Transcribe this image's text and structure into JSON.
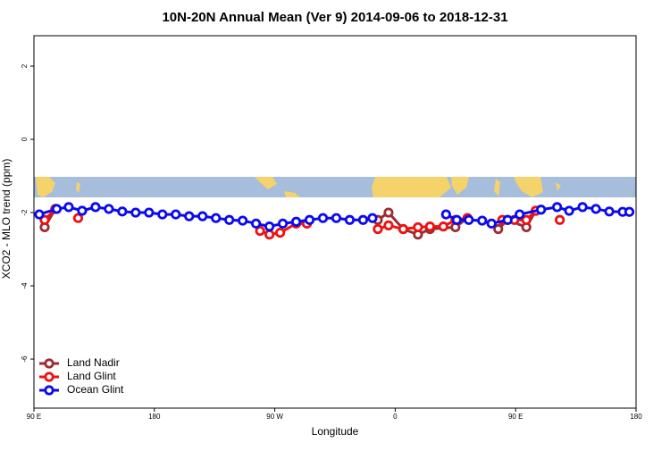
{
  "chart_data": {
    "type": "line",
    "title": "10N-20N Annual Mean (Ver 9)   2014-09-06 to 2018-12-31",
    "x_label": "Longitude",
    "y_label": "XCO2 - MLO trend (ppm)",
    "xlim": [
      90,
      540
    ],
    "ylim": [
      -7.34,
      2.83
    ],
    "xticks": [
      {
        "value": 90,
        "label": "90 E"
      },
      {
        "value": 180,
        "label": "180"
      },
      {
        "value": 270,
        "label": "90 W"
      },
      {
        "value": 360,
        "label": "0"
      },
      {
        "value": 450,
        "label": "90 E"
      },
      {
        "value": 540,
        "label": "180"
      }
    ],
    "yticks": [
      -6,
      -4,
      -2,
      0,
      2
    ],
    "legend": "bottom-left",
    "series": [
      {
        "name": "Land Nadir",
        "color": "#9b2d30",
        "x": [
          98,
          106,
          200,
          286,
          294,
          320,
          347,
          355,
          366,
          377,
          386,
          405,
          414,
          425,
          437,
          444,
          458,
          465
        ],
        "values": [
          -2.4,
          -1.9,
          null,
          -2.25,
          -2.3,
          null,
          -2.2,
          -2.0,
          -2.45,
          -2.6,
          -2.45,
          -2.4,
          -2.15,
          null,
          -2.45,
          -2.2,
          -2.4,
          -1.95
        ]
      },
      {
        "name": "Land Glint",
        "color": "#ee1111",
        "x": [
          98,
          106,
          115,
          123,
          200,
          259,
          266,
          274,
          286,
          294,
          320,
          347,
          355,
          366,
          377,
          386,
          396,
          405,
          414,
          425,
          440,
          449,
          458,
          465,
          475,
          483
        ],
        "values": [
          -2.2,
          -1.9,
          null,
          -2.15,
          null,
          -2.5,
          -2.6,
          -2.55,
          -2.3,
          -2.3,
          null,
          -2.45,
          -2.35,
          -2.45,
          -2.4,
          -2.38,
          -2.38,
          -2.2,
          -2.15,
          null,
          -2.2,
          -2.2,
          -2.2,
          -1.95,
          null,
          -2.2
        ]
      },
      {
        "name": "Ocean Glint",
        "color": "#0a0af0",
        "x": [
          94,
          107,
          116,
          126,
          136,
          146,
          156,
          166,
          176,
          186,
          196,
          206,
          216,
          226,
          236,
          246,
          256,
          266,
          276,
          286,
          296,
          306,
          316,
          326,
          336,
          343,
          370,
          398,
          406,
          415,
          425,
          432,
          444,
          453,
          469,
          481,
          490,
          500,
          510,
          520,
          530,
          535
        ],
        "values": [
          -2.05,
          -1.9,
          -1.85,
          -1.95,
          -1.85,
          -1.9,
          -1.97,
          -2.0,
          -2.0,
          -2.05,
          -2.05,
          -2.1,
          -2.1,
          -2.15,
          -2.2,
          -2.22,
          -2.3,
          -2.38,
          -2.3,
          -2.25,
          -2.2,
          -2.15,
          -2.15,
          -2.2,
          -2.2,
          -2.15,
          null,
          -2.05,
          -2.2,
          -2.2,
          -2.22,
          -2.3,
          -2.2,
          -2.05,
          -1.92,
          -1.85,
          -1.95,
          -1.85,
          -1.9,
          -1.97,
          -1.98,
          -1.98
        ]
      }
    ]
  }
}
